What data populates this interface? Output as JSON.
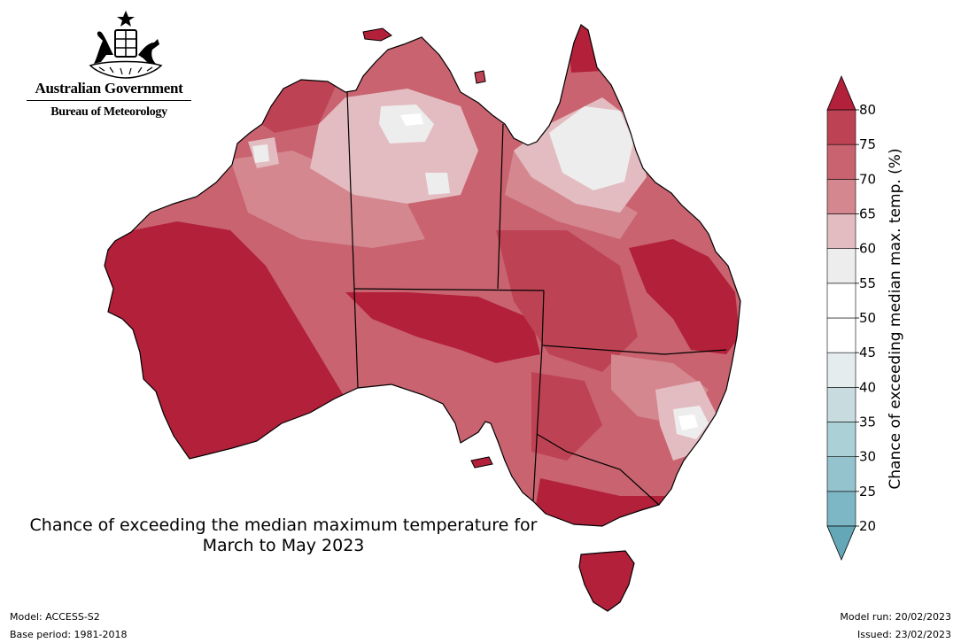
{
  "logo": {
    "line1": "Australian Government",
    "line2": "Bureau of Meteorology",
    "emblem": "coat-of-arms-emblem"
  },
  "map": {
    "title_line1": "Chance of exceeding the median maximum temperature for",
    "title_line2": "March to May 2023",
    "region": "Australia"
  },
  "colorbar": {
    "label": "Chance of exceeding median max. temp. (%)",
    "ticks": [
      "20",
      "25",
      "30",
      "35",
      "40",
      "45",
      "50",
      "55",
      "60",
      "65",
      "70",
      "75",
      "80"
    ],
    "colors": {
      "below_20": "#64a8b8",
      "20-25": "#7db6c4",
      "25-30": "#94c3cd",
      "30-35": "#abd0d6",
      "35-40": "#c8dcdf",
      "40-45": "#e4ecee",
      "45-50": "#ffffff",
      "50-55": "#ffffff",
      "55-60": "#ededed",
      "60-65": "#e3bcc1",
      "65-70": "#d4878f",
      "70-75": "#c8636f",
      "75-80": "#bd4354",
      "above_80": "#b2203a"
    }
  },
  "footer": {
    "model": "Model: ACCESS-S2",
    "base_period": "Base period: 1981-2018",
    "model_run": "Model run: 20/02/2023",
    "issued": "Issued: 23/02/2023"
  }
}
